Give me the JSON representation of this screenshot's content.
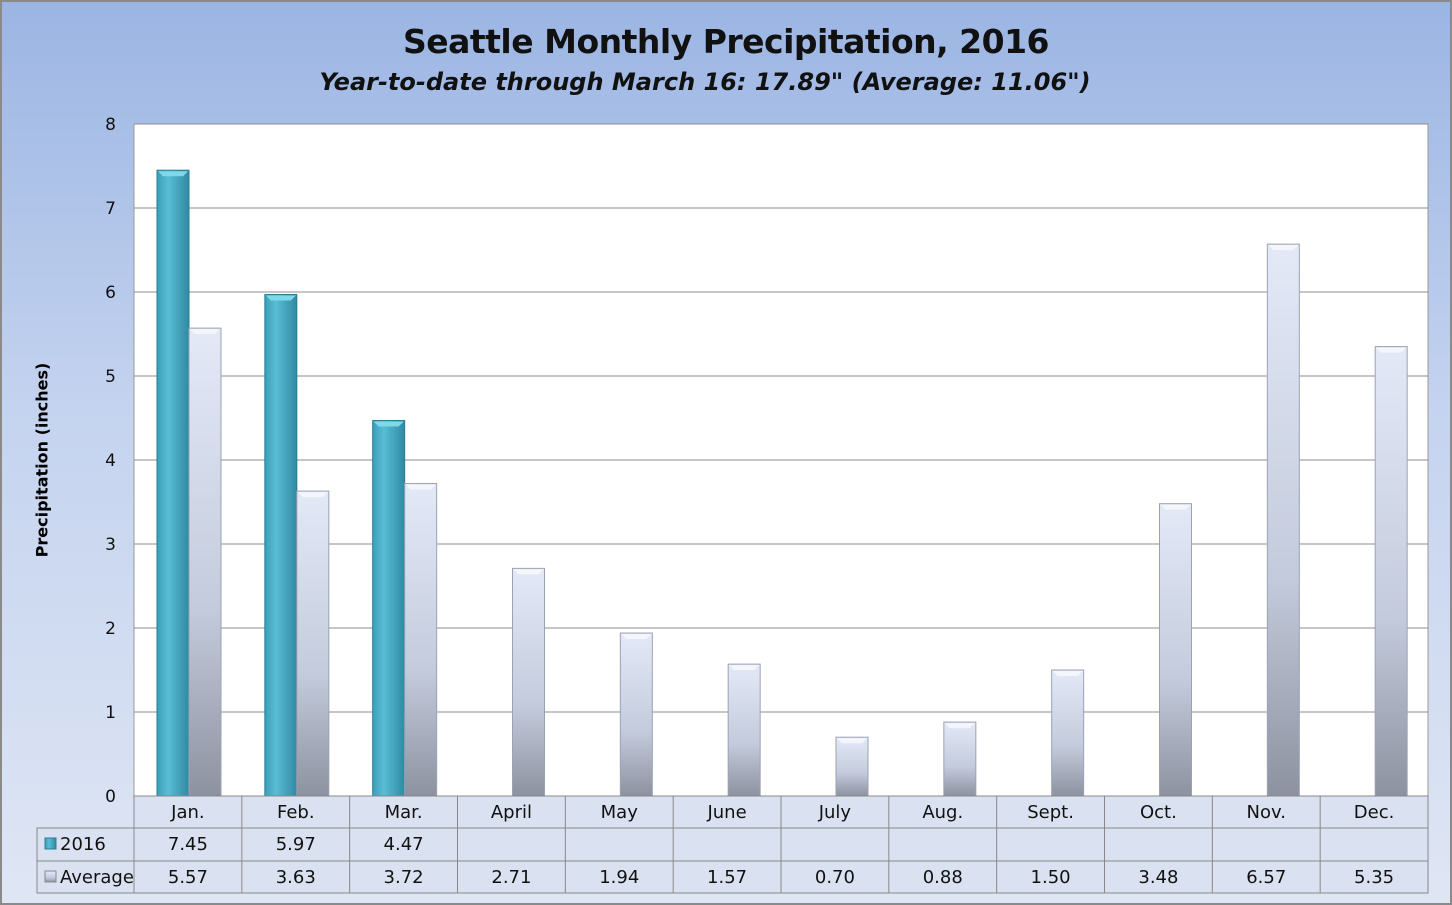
{
  "chart_data": {
    "type": "bar",
    "title": "Seattle Monthly Precipitation, 2016",
    "subtitle": "Year-to-date through March 16: 17.89\" (Average: 11.06\")",
    "xlabel": "",
    "ylabel": "Precipitation (inches)",
    "ylim": [
      0,
      8
    ],
    "yticks": [
      "0",
      "1",
      "2",
      "3",
      "4",
      "5",
      "6",
      "7",
      "8"
    ],
    "grid": true,
    "legend_placement": "data-table",
    "categories": [
      "Jan.",
      "Feb.",
      "Mar.",
      "April",
      "May",
      "June",
      "July",
      "Aug.",
      "Sept.",
      "Oct.",
      "Nov.",
      "Dec."
    ],
    "series": [
      {
        "name": "2016",
        "color": "#4bb3cc",
        "values": [
          7.45,
          5.97,
          4.47,
          null,
          null,
          null,
          null,
          null,
          null,
          null,
          null,
          null
        ],
        "labels": [
          "7.45",
          "5.97",
          "4.47",
          "",
          "",
          "",
          "",
          "",
          "",
          "",
          "",
          ""
        ]
      },
      {
        "name": "Average",
        "color": "#c8cfe0",
        "values": [
          5.57,
          3.63,
          3.72,
          2.71,
          1.94,
          1.57,
          0.7,
          0.88,
          1.5,
          3.48,
          6.57,
          5.35
        ],
        "labels": [
          "5.57",
          "3.63",
          "3.72",
          "2.71",
          "1.94",
          "1.57",
          "0.70",
          "0.88",
          "1.50",
          "3.48",
          "6.57",
          "5.35"
        ]
      }
    ]
  }
}
